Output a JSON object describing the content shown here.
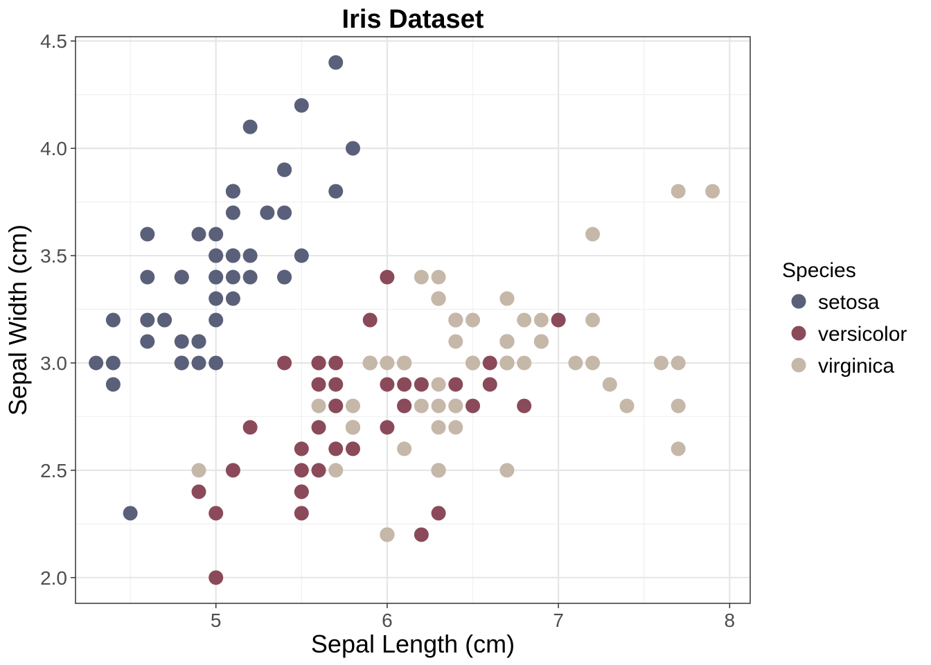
{
  "chart_data": {
    "type": "scatter",
    "title": "Iris Dataset",
    "xlabel": "Sepal Length (cm)",
    "ylabel": "Sepal Width (cm)",
    "xlim": [
      4.18,
      8.12
    ],
    "ylim": [
      1.88,
      4.52
    ],
    "xticks": [
      5,
      6,
      7,
      8
    ],
    "xtick_labels": [
      "5",
      "6",
      "7",
      "8"
    ],
    "yticks": [
      2.0,
      2.5,
      3.0,
      3.5,
      4.0,
      4.5
    ],
    "ytick_labels": [
      "2.0",
      "2.5",
      "3.0",
      "3.5",
      "4.0",
      "4.5"
    ],
    "grid": true,
    "legend": {
      "title": "Species",
      "position": "right"
    },
    "series": [
      {
        "name": "setosa",
        "color": "#5a6079",
        "points": [
          [
            5.1,
            3.5
          ],
          [
            4.9,
            3.0
          ],
          [
            4.7,
            3.2
          ],
          [
            4.6,
            3.1
          ],
          [
            5.0,
            3.6
          ],
          [
            5.4,
            3.9
          ],
          [
            4.6,
            3.4
          ],
          [
            5.0,
            3.4
          ],
          [
            4.4,
            2.9
          ],
          [
            4.9,
            3.1
          ],
          [
            5.4,
            3.7
          ],
          [
            4.8,
            3.4
          ],
          [
            4.8,
            3.0
          ],
          [
            4.3,
            3.0
          ],
          [
            5.8,
            4.0
          ],
          [
            5.7,
            4.4
          ],
          [
            5.4,
            3.9
          ],
          [
            5.1,
            3.5
          ],
          [
            5.7,
            3.8
          ],
          [
            5.1,
            3.8
          ],
          [
            5.4,
            3.4
          ],
          [
            5.1,
            3.7
          ],
          [
            4.6,
            3.6
          ],
          [
            5.1,
            3.3
          ],
          [
            4.8,
            3.4
          ],
          [
            5.0,
            3.0
          ],
          [
            5.0,
            3.4
          ],
          [
            5.2,
            3.5
          ],
          [
            5.2,
            3.4
          ],
          [
            4.7,
            3.2
          ],
          [
            4.8,
            3.1
          ],
          [
            5.4,
            3.4
          ],
          [
            5.2,
            4.1
          ],
          [
            5.5,
            4.2
          ],
          [
            4.9,
            3.1
          ],
          [
            5.0,
            3.2
          ],
          [
            5.5,
            3.5
          ],
          [
            4.9,
            3.6
          ],
          [
            4.4,
            3.0
          ],
          [
            5.1,
            3.4
          ],
          [
            5.0,
            3.5
          ],
          [
            4.5,
            2.3
          ],
          [
            4.4,
            3.2
          ],
          [
            5.0,
            3.5
          ],
          [
            5.1,
            3.8
          ],
          [
            4.8,
            3.0
          ],
          [
            5.1,
            3.8
          ],
          [
            4.6,
            3.2
          ],
          [
            5.3,
            3.7
          ],
          [
            5.0,
            3.3
          ]
        ]
      },
      {
        "name": "versicolor",
        "color": "#8a4a5a",
        "points": [
          [
            7.0,
            3.2
          ],
          [
            6.4,
            3.2
          ],
          [
            6.9,
            3.1
          ],
          [
            5.5,
            2.3
          ],
          [
            6.5,
            2.8
          ],
          [
            5.7,
            2.8
          ],
          [
            6.3,
            3.3
          ],
          [
            4.9,
            2.4
          ],
          [
            6.6,
            2.9
          ],
          [
            5.2,
            2.7
          ],
          [
            5.0,
            2.0
          ],
          [
            5.9,
            3.0
          ],
          [
            6.0,
            2.2
          ],
          [
            6.1,
            2.9
          ],
          [
            5.6,
            2.9
          ],
          [
            6.7,
            3.1
          ],
          [
            5.6,
            3.0
          ],
          [
            5.8,
            2.7
          ],
          [
            6.2,
            2.2
          ],
          [
            5.6,
            2.5
          ],
          [
            5.9,
            3.2
          ],
          [
            6.1,
            2.8
          ],
          [
            6.3,
            2.5
          ],
          [
            6.1,
            2.8
          ],
          [
            6.4,
            2.9
          ],
          [
            6.6,
            3.0
          ],
          [
            6.8,
            2.8
          ],
          [
            6.7,
            3.0
          ],
          [
            6.0,
            2.9
          ],
          [
            5.7,
            2.6
          ],
          [
            5.5,
            2.4
          ],
          [
            5.5,
            2.4
          ],
          [
            5.8,
            2.7
          ],
          [
            6.0,
            2.7
          ],
          [
            5.4,
            3.0
          ],
          [
            6.0,
            3.4
          ],
          [
            6.7,
            3.1
          ],
          [
            6.3,
            2.3
          ],
          [
            5.6,
            3.0
          ],
          [
            5.5,
            2.5
          ],
          [
            5.5,
            2.6
          ],
          [
            6.1,
            3.0
          ],
          [
            5.8,
            2.6
          ],
          [
            5.0,
            2.3
          ],
          [
            5.6,
            2.7
          ],
          [
            5.7,
            3.0
          ],
          [
            5.7,
            2.9
          ],
          [
            6.2,
            2.9
          ],
          [
            5.1,
            2.5
          ],
          [
            5.7,
            2.8
          ]
        ]
      },
      {
        "name": "virginica",
        "color": "#c6b8a9",
        "points": [
          [
            6.3,
            3.3
          ],
          [
            5.8,
            2.7
          ],
          [
            7.1,
            3.0
          ],
          [
            6.3,
            2.9
          ],
          [
            6.5,
            3.0
          ],
          [
            7.6,
            3.0
          ],
          [
            4.9,
            2.5
          ],
          [
            7.3,
            2.9
          ],
          [
            6.7,
            2.5
          ],
          [
            7.2,
            3.6
          ],
          [
            6.5,
            3.2
          ],
          [
            6.4,
            2.7
          ],
          [
            6.8,
            3.0
          ],
          [
            5.7,
            2.5
          ],
          [
            5.8,
            2.8
          ],
          [
            6.4,
            3.2
          ],
          [
            6.5,
            3.0
          ],
          [
            7.7,
            3.8
          ],
          [
            7.7,
            2.6
          ],
          [
            6.0,
            2.2
          ],
          [
            6.9,
            3.2
          ],
          [
            5.6,
            2.8
          ],
          [
            7.7,
            2.8
          ],
          [
            6.3,
            2.7
          ],
          [
            6.7,
            3.3
          ],
          [
            7.2,
            3.2
          ],
          [
            6.2,
            2.8
          ],
          [
            6.1,
            3.0
          ],
          [
            6.4,
            2.8
          ],
          [
            7.2,
            3.0
          ],
          [
            7.4,
            2.8
          ],
          [
            7.9,
            3.8
          ],
          [
            6.4,
            2.8
          ],
          [
            6.3,
            2.8
          ],
          [
            6.1,
            2.6
          ],
          [
            7.7,
            3.0
          ],
          [
            6.3,
            3.4
          ],
          [
            6.4,
            3.1
          ],
          [
            6.0,
            3.0
          ],
          [
            6.9,
            3.1
          ],
          [
            6.7,
            3.1
          ],
          [
            6.9,
            3.1
          ],
          [
            5.8,
            2.7
          ],
          [
            6.8,
            3.2
          ],
          [
            6.7,
            3.3
          ],
          [
            6.7,
            3.0
          ],
          [
            6.3,
            2.5
          ],
          [
            6.5,
            3.0
          ],
          [
            6.2,
            3.4
          ],
          [
            5.9,
            3.0
          ]
        ]
      }
    ]
  }
}
